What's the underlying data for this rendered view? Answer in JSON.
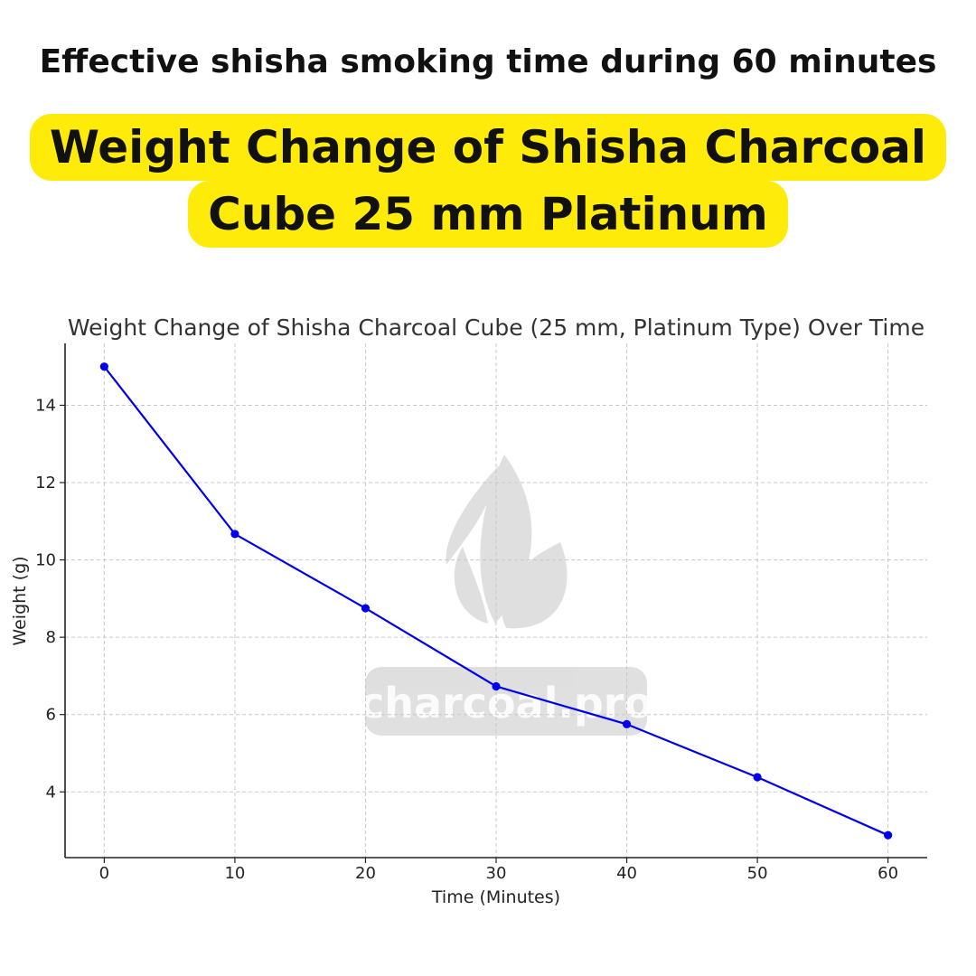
{
  "header": {
    "subtitle": "Effective shisha smoking time during 60 minutes",
    "highlight_line1": "Weight Change of Shisha Charcoal",
    "highlight_line2": "Cube 25 mm Platinum"
  },
  "watermark": {
    "text": "charcoal.pro",
    "icon": "flame-icon"
  },
  "colors": {
    "highlight": "#ffeb0a",
    "series": "#0000ee"
  },
  "chart_data": {
    "type": "line",
    "title": "Weight Change of Shisha Charcoal Cube (25 mm, Platinum Type) Over Time",
    "xlabel": "Time (Minutes)",
    "ylabel": "Weight (g)",
    "x": [
      0,
      10,
      20,
      30,
      40,
      50,
      60
    ],
    "series": [
      {
        "values": [
          15.0,
          10.67,
          8.75,
          6.73,
          5.75,
          4.38,
          2.88
        ]
      }
    ],
    "xticks": [
      "0",
      "10",
      "20",
      "30",
      "40",
      "50",
      "60"
    ],
    "yticks": [
      "4",
      "6",
      "8",
      "10",
      "12",
      "14"
    ],
    "xlim": [
      -3,
      63
    ],
    "ylim": [
      2.3,
      15.6
    ],
    "grid": true,
    "legend": "none"
  }
}
